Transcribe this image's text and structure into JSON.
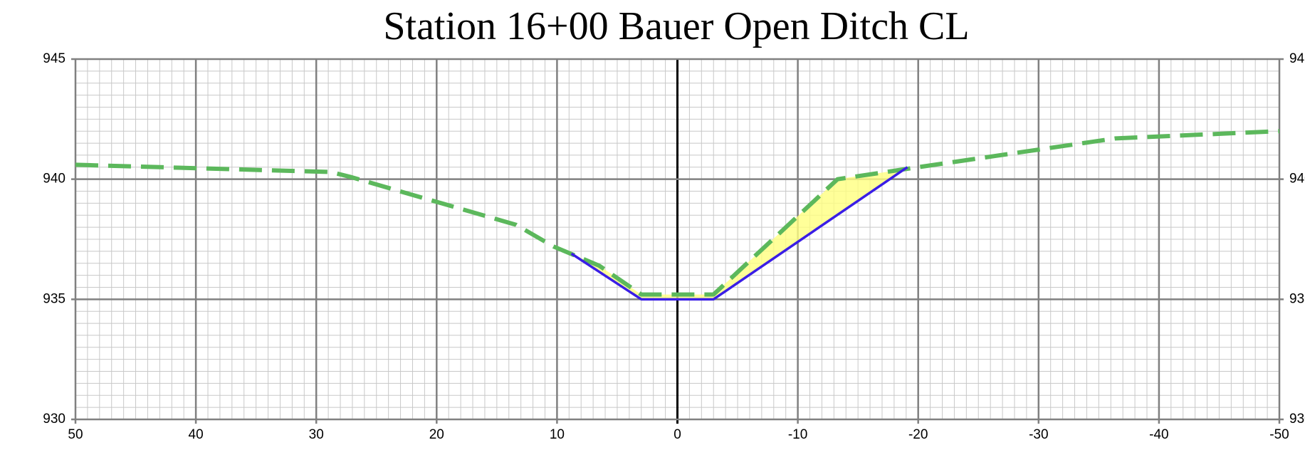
{
  "chart_data": {
    "type": "line",
    "title": "Station 16+00 Bauer Open Ditch CL",
    "xlim": [
      50,
      -50
    ],
    "xticks": [
      50,
      40,
      30,
      20,
      10,
      0,
      -10,
      -20,
      -30,
      -40,
      -50
    ],
    "ylim": [
      930,
      945
    ],
    "yticks": [
      930,
      935,
      940,
      945
    ],
    "grid": true,
    "fill_color": "#ffff80",
    "series": [
      {
        "color": "#5cb85c",
        "dashed": true,
        "x": [
          50,
          28.8,
          27.2,
          20.3,
          13.4,
          10.3,
          6.5,
          3.0,
          -3.0,
          -13.3,
          -20.0,
          -36.4,
          -50
        ],
        "values": [
          940.6,
          940.3,
          940.1,
          939.1,
          938.1,
          937.2,
          936.4,
          935.2,
          935.2,
          940.0,
          940.5,
          941.7,
          942.0
        ]
      },
      {
        "color": "#3a1ee6",
        "dashed": false,
        "x": [
          8.8,
          3.0,
          -3.0,
          -19.1
        ],
        "values": [
          936.9,
          935.0,
          935.0,
          940.5
        ]
      }
    ]
  }
}
